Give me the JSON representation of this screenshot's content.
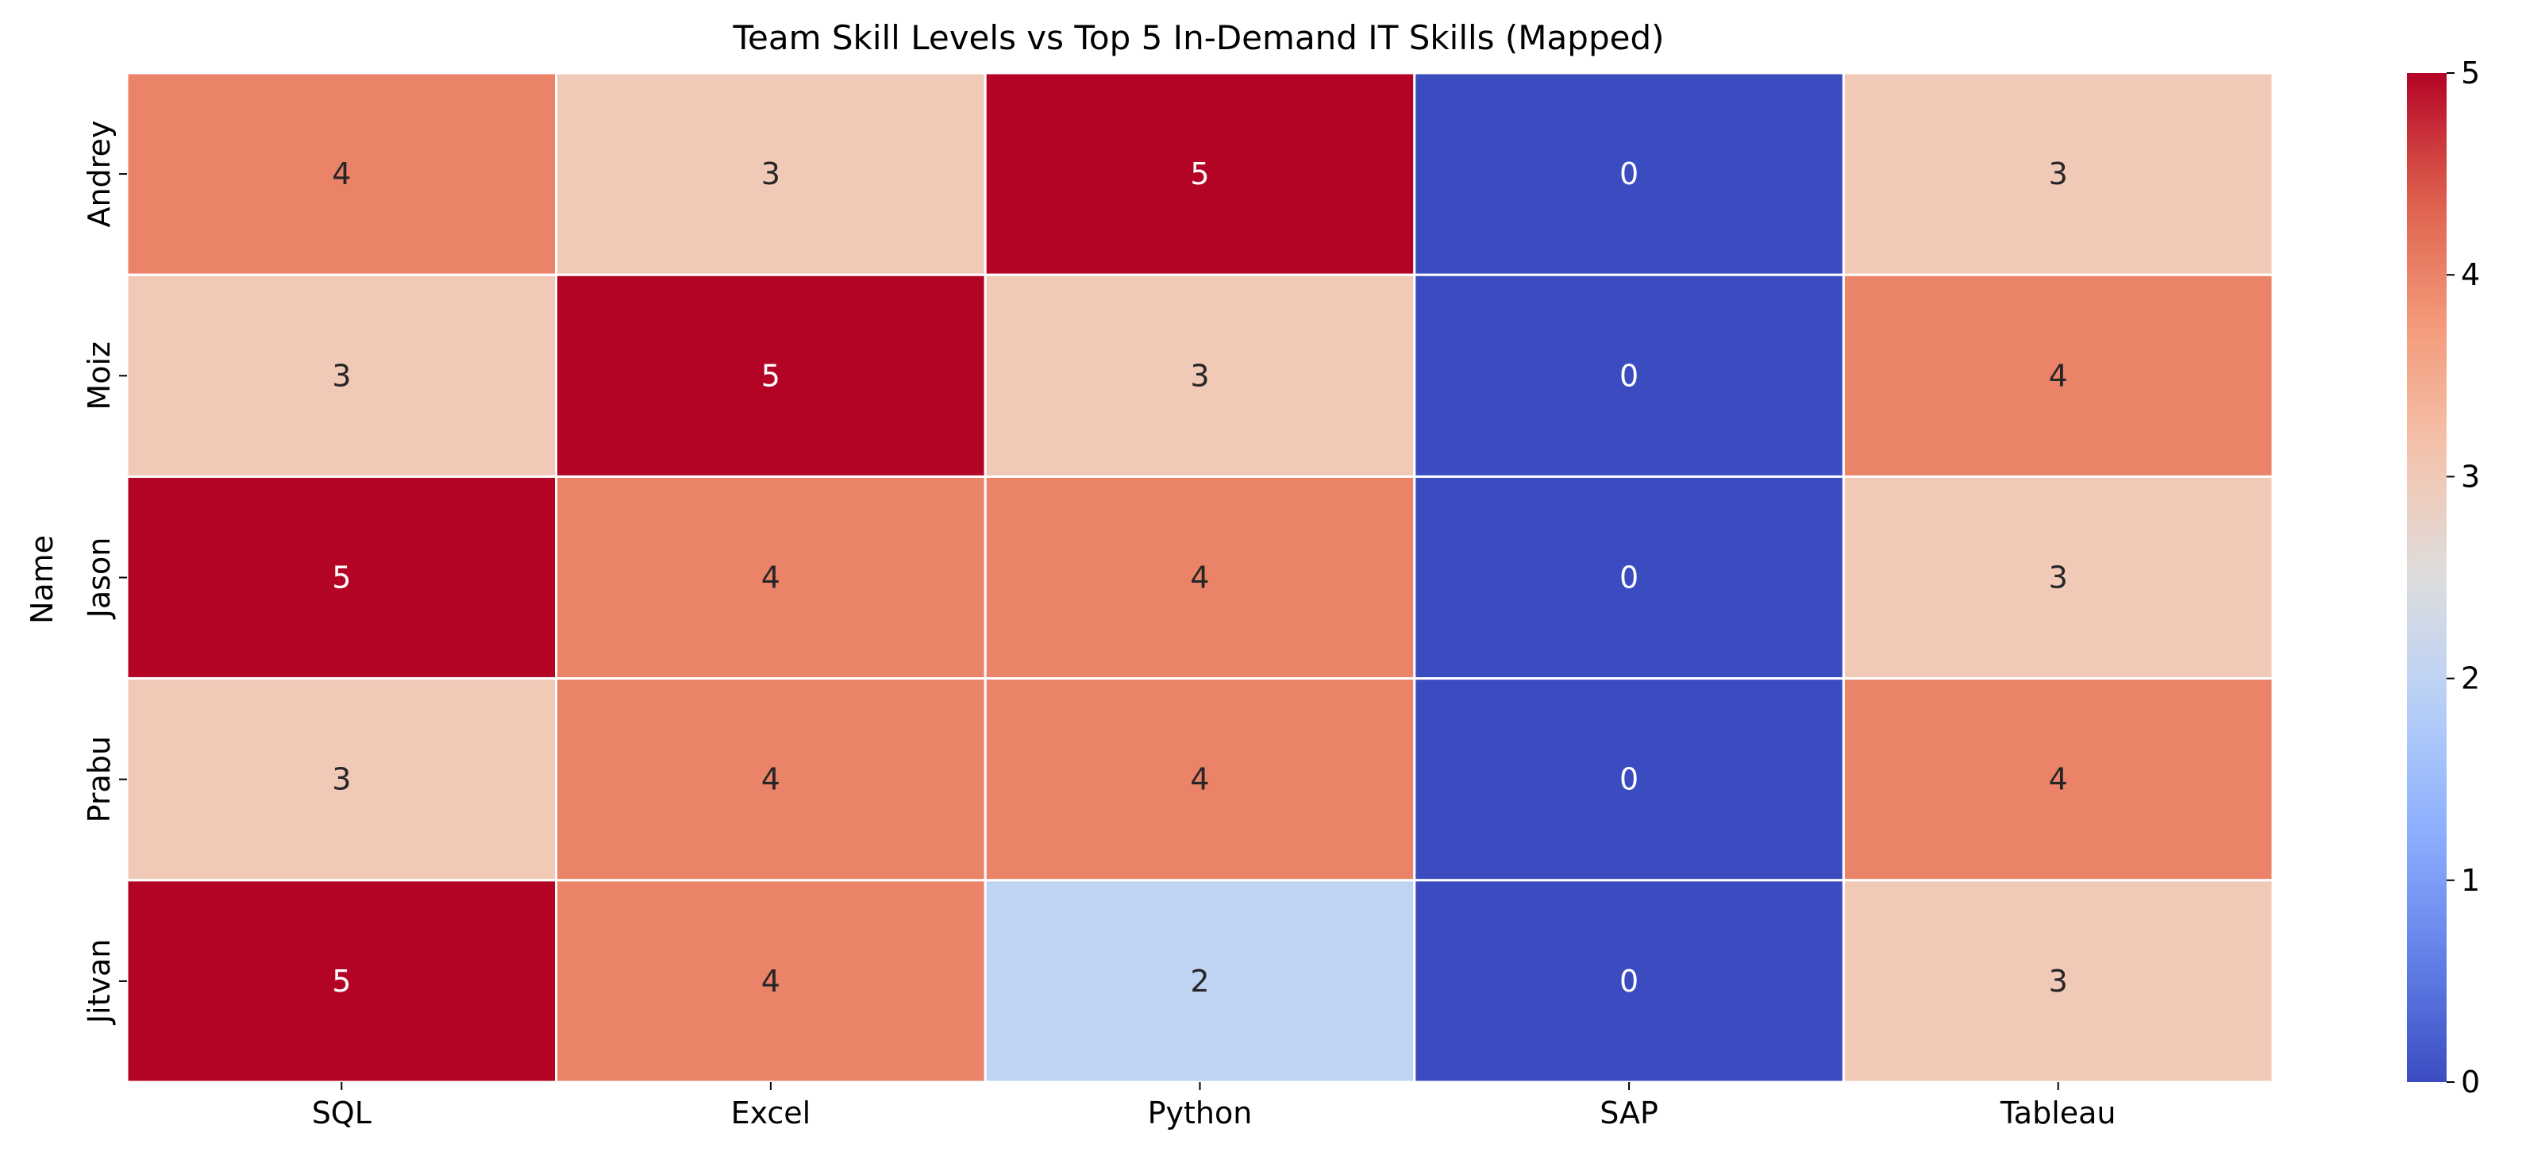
{
  "chart_data": {
    "type": "heatmap",
    "title": "Team Skill Levels vs Top 5 In-Demand IT Skills (Mapped)",
    "xlabel": "",
    "ylabel": "Name",
    "x_categories": [
      "SQL",
      "Excel",
      "Python",
      "SAP",
      "Tableau"
    ],
    "y_categories": [
      "Andrey",
      "Moiz",
      "Jason",
      "Prabu",
      "Jitvan"
    ],
    "values": [
      [
        4,
        3,
        5,
        0,
        3
      ],
      [
        3,
        5,
        3,
        0,
        4
      ],
      [
        5,
        4,
        4,
        0,
        3
      ],
      [
        3,
        4,
        4,
        0,
        4
      ],
      [
        5,
        4,
        2,
        0,
        3
      ]
    ],
    "colormap": "coolwarm",
    "vmin": 0,
    "vmax": 5,
    "colorbar_ticks": [
      0,
      1,
      2,
      3,
      4,
      5
    ],
    "annotations": true,
    "grid": false,
    "colors": {
      "low": "#3b4cc0",
      "mid": "#dddddd",
      "high": "#b40426",
      "cell_border": "#ffffff",
      "text_light": "#ffffff",
      "text_dark": "#262626"
    }
  }
}
